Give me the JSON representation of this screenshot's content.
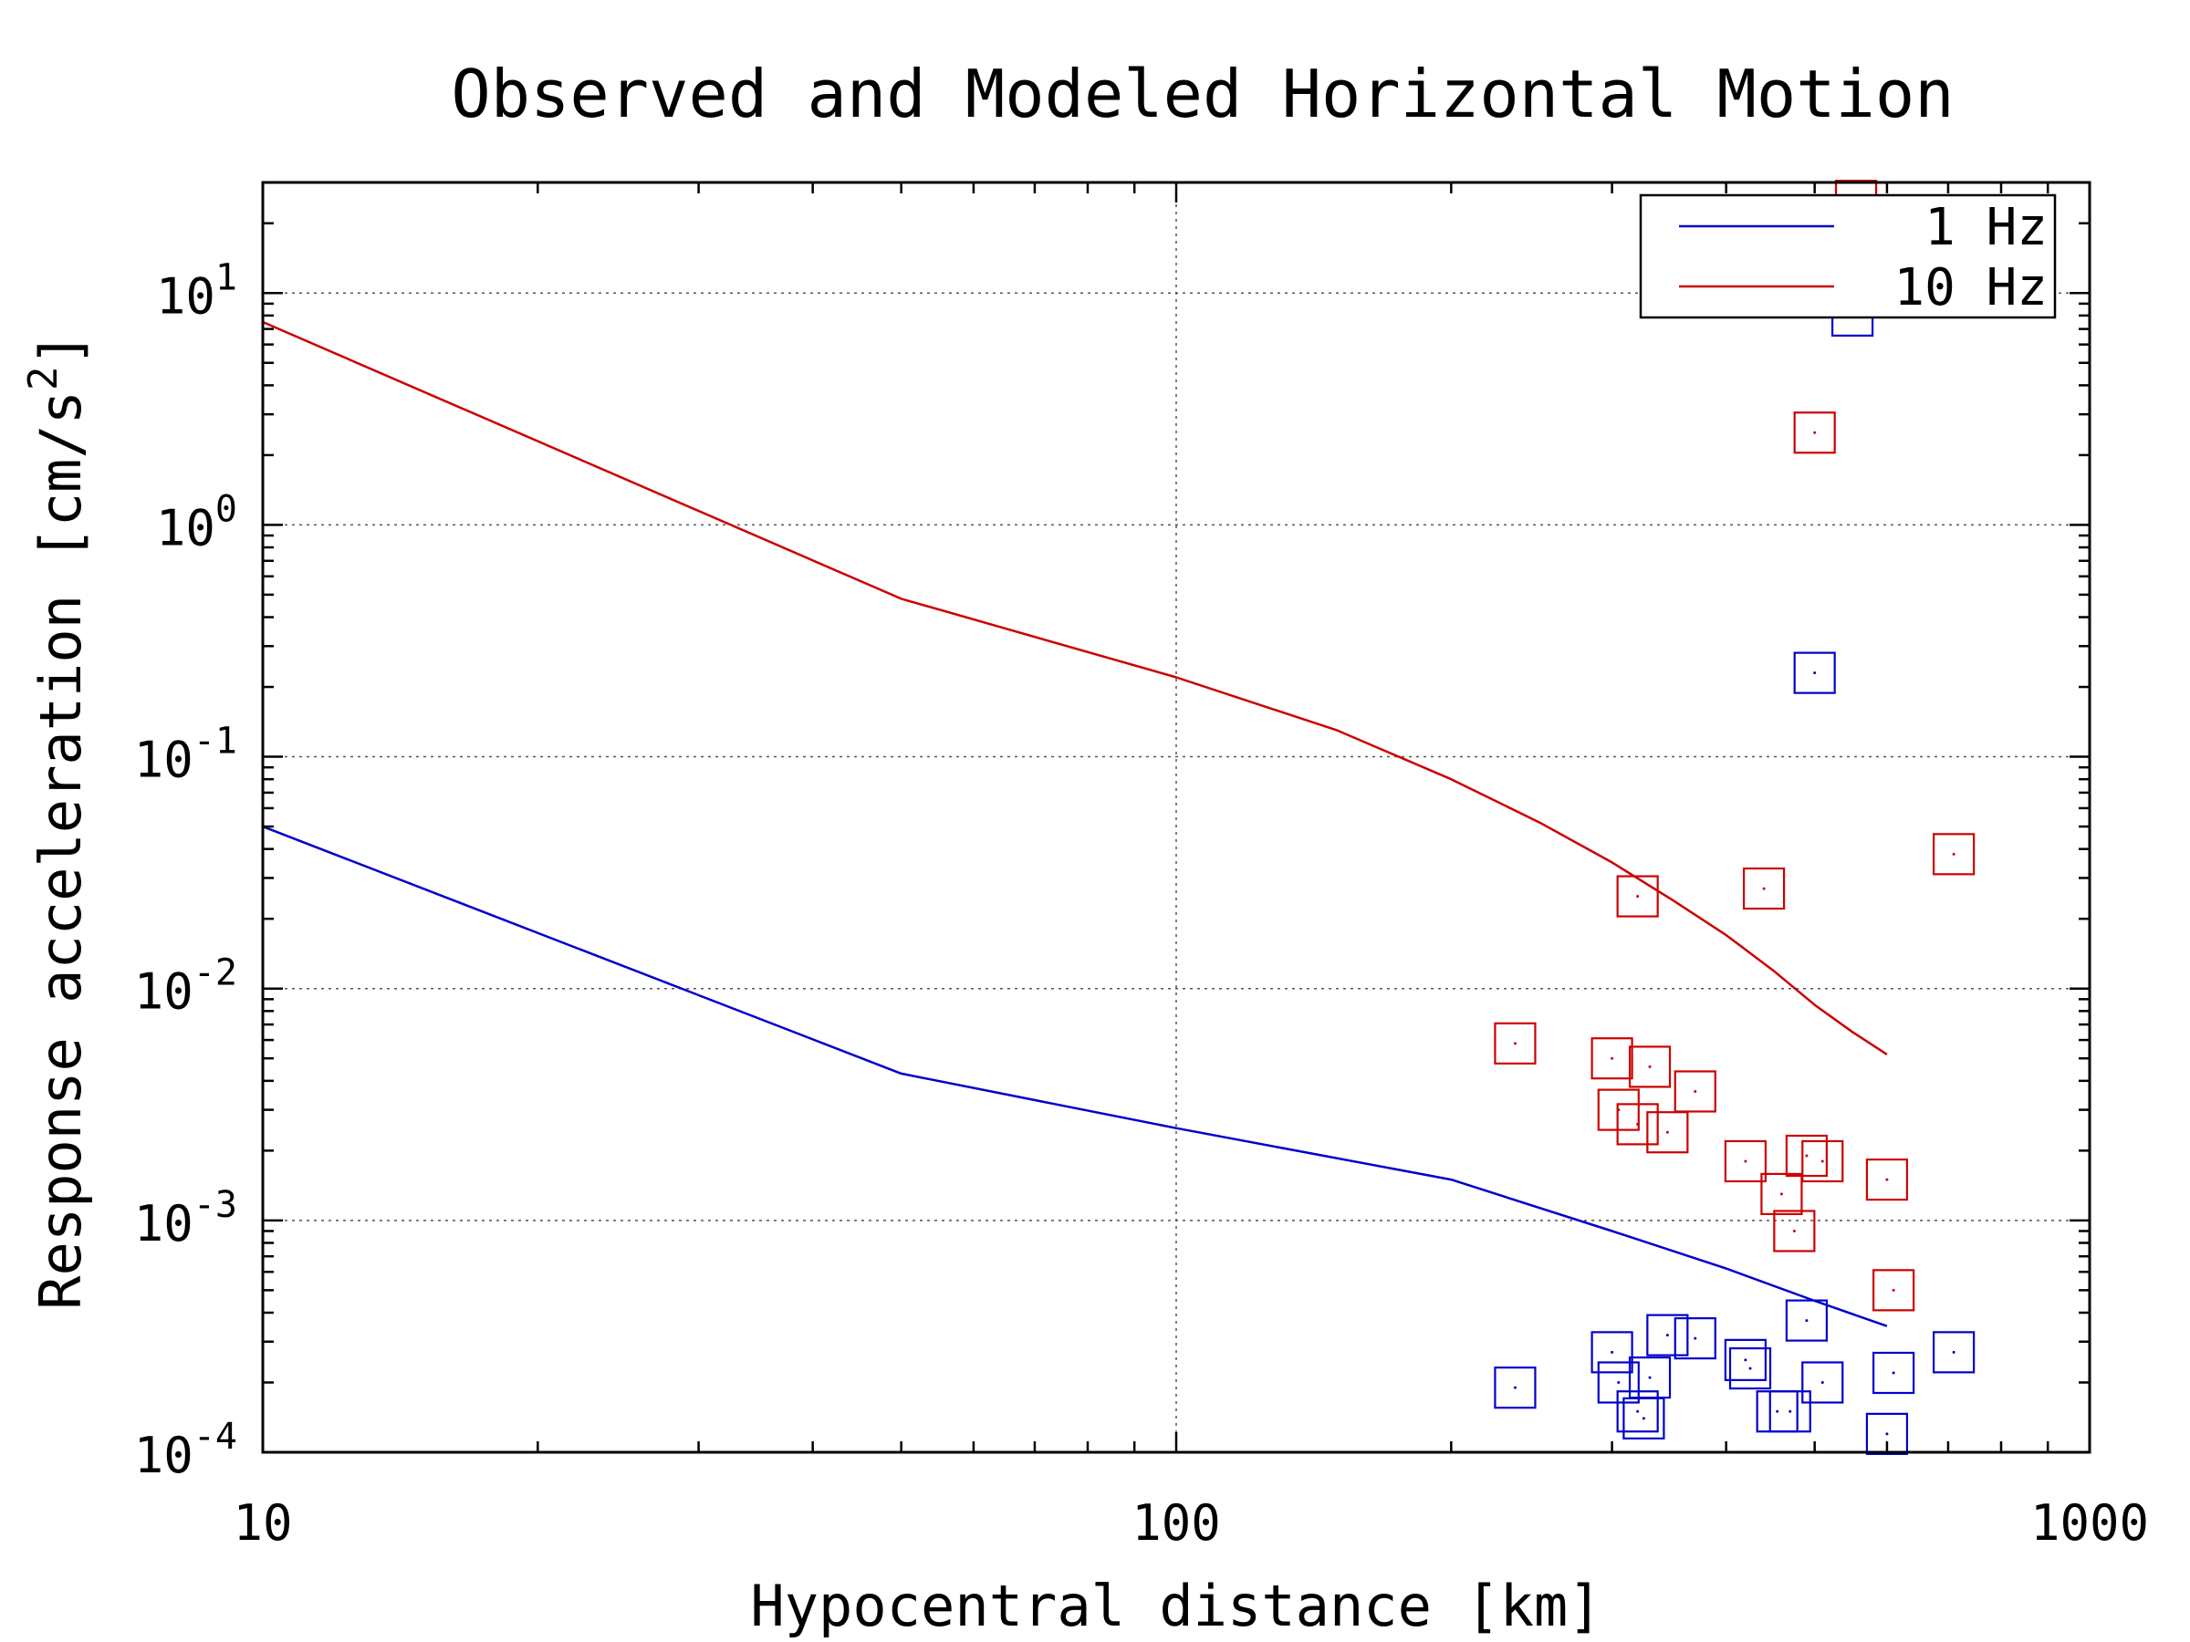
{
  "chart_data": {
    "type": "scatter",
    "title": "Observed and Modeled Horizontal Motion",
    "xlabel": "Hypocentral distance [km]",
    "ylabel_base": "Response acceleration [cm/s",
    "ylabel_sup": "2",
    "ylabel_end": "]",
    "x_scale": "log",
    "y_scale": "log",
    "xlim": [
      10,
      1000
    ],
    "ylim": [
      0.0001,
      30
    ],
    "x_ticks": [
      {
        "value": 10,
        "label": "10"
      },
      {
        "value": 100,
        "label": "100"
      },
      {
        "value": 1000,
        "label": "1000"
      }
    ],
    "y_ticks": [
      {
        "value": 0.0001,
        "base": "10",
        "exp": "-4"
      },
      {
        "value": 0.001,
        "base": "10",
        "exp": "-3"
      },
      {
        "value": 0.01,
        "base": "10",
        "exp": "-2"
      },
      {
        "value": 0.1,
        "base": "10",
        "exp": "-1"
      },
      {
        "value": 1,
        "base": "10",
        "exp": "0"
      },
      {
        "value": 10,
        "base": "10",
        "exp": "1"
      }
    ],
    "grid": true,
    "legend_position": "top-right",
    "series": [
      {
        "name": "1 Hz",
        "color": "#0000cc",
        "style": "line",
        "x": [
          10,
          50,
          100,
          200,
          300,
          400,
          500,
          600
        ],
        "y": [
          0.05,
          0.0043,
          0.0025,
          0.0015,
          0.0009,
          0.00062,
          0.00045,
          0.00035
        ]
      },
      {
        "name": "10 Hz",
        "color": "#cc0000",
        "style": "line",
        "x": [
          10,
          50,
          100,
          150,
          200,
          250,
          300,
          350,
          400,
          450,
          500,
          550,
          600
        ],
        "y": [
          7.5,
          0.48,
          0.22,
          0.13,
          0.08,
          0.052,
          0.035,
          0.024,
          0.017,
          0.012,
          0.0085,
          0.0065,
          0.0052
        ]
      },
      {
        "name": "",
        "color": "#cc0000",
        "style": "marker",
        "x": [
          555,
          500,
          320,
          440,
          710,
          235,
          300,
          330,
          370,
          305,
          320,
          345,
          420,
          490,
          510,
          460,
          475,
          600,
          610
        ],
        "y": [
          25,
          2.5,
          0.025,
          0.027,
          0.038,
          0.0058,
          0.005,
          0.0046,
          0.0036,
          0.003,
          0.0026,
          0.0024,
          0.0018,
          0.0019,
          0.0018,
          0.0013,
          0.0009,
          0.0015,
          0.0005
        ]
      },
      {
        "name": "",
        "color": "#0000cc",
        "style": "marker",
        "x": [
          550,
          500,
          235,
          300,
          305,
          330,
          345,
          370,
          420,
          425,
          490,
          510,
          455,
          470,
          600,
          610,
          710,
          320,
          325
        ],
        "y": [
          8,
          0.23,
          0.00019,
          0.00027,
          0.0002,
          0.00021,
          0.00032,
          0.00031,
          0.00025,
          0.00023,
          0.00037,
          0.0002,
          0.00015,
          0.00015,
          0.00012,
          0.00022,
          0.00027,
          0.00015,
          0.00014
        ]
      }
    ]
  }
}
